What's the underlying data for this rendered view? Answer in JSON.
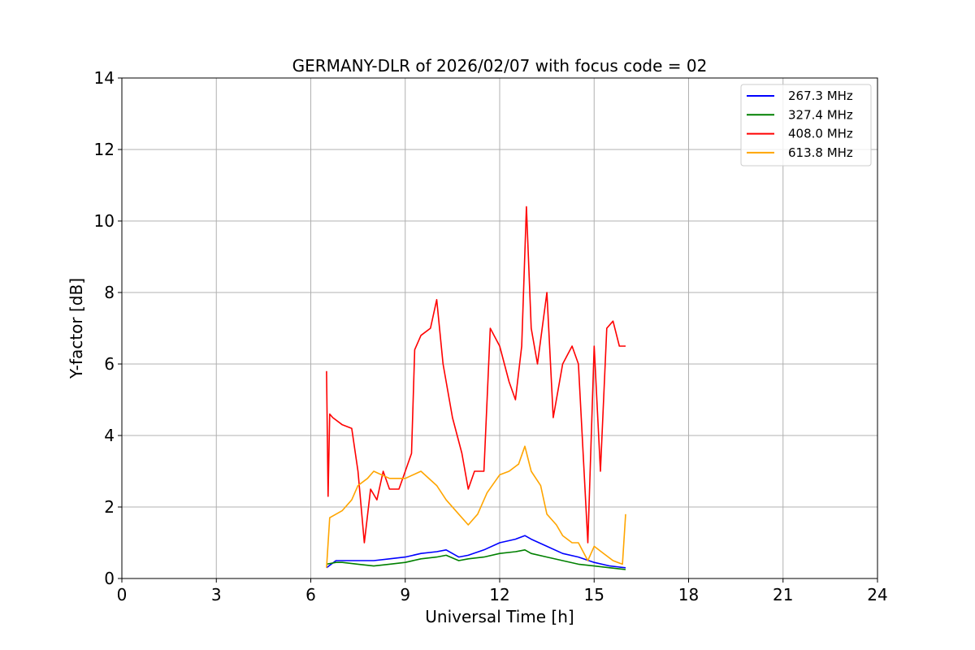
{
  "chart_data": {
    "type": "line",
    "title": "GERMANY-DLR of 2026/02/07 with focus code = 02",
    "xlabel": "Universal Time [h]",
    "ylabel": "Y-factor [dB]",
    "xlim": [
      0,
      24
    ],
    "ylim": [
      0,
      14
    ],
    "xticks": [
      "0",
      "3",
      "6",
      "9",
      "12",
      "15",
      "18",
      "21",
      "24"
    ],
    "yticks": [
      "0",
      "2",
      "4",
      "6",
      "8",
      "10",
      "12",
      "14"
    ],
    "grid": true,
    "legend_position": "top-right",
    "series": [
      {
        "name": "267.3 MHz",
        "color": "#0000ff",
        "x": [
          6.5,
          6.8,
          7.0,
          7.5,
          8.0,
          8.5,
          9.0,
          9.5,
          10.0,
          10.3,
          10.7,
          11.0,
          11.5,
          12.0,
          12.5,
          12.8,
          13.0,
          13.5,
          14.0,
          14.5,
          15.0,
          15.5,
          16.0
        ],
        "y": [
          0.3,
          0.5,
          0.5,
          0.5,
          0.5,
          0.55,
          0.6,
          0.7,
          0.75,
          0.8,
          0.6,
          0.65,
          0.8,
          1.0,
          1.1,
          1.2,
          1.1,
          0.9,
          0.7,
          0.6,
          0.45,
          0.35,
          0.3
        ]
      },
      {
        "name": "327.4 MHz",
        "color": "#008000",
        "x": [
          6.5,
          6.8,
          7.0,
          7.5,
          8.0,
          8.5,
          9.0,
          9.5,
          10.0,
          10.3,
          10.7,
          11.0,
          11.5,
          12.0,
          12.5,
          12.8,
          13.0,
          13.5,
          14.0,
          14.5,
          15.0,
          15.5,
          16.0
        ],
        "y": [
          0.4,
          0.45,
          0.45,
          0.4,
          0.35,
          0.4,
          0.45,
          0.55,
          0.6,
          0.65,
          0.5,
          0.55,
          0.6,
          0.7,
          0.75,
          0.8,
          0.7,
          0.6,
          0.5,
          0.4,
          0.35,
          0.3,
          0.25
        ]
      },
      {
        "name": "408.0 MHz",
        "color": "#ff0000",
        "x": [
          6.5,
          6.55,
          6.6,
          6.7,
          7.0,
          7.3,
          7.5,
          7.7,
          7.9,
          8.1,
          8.3,
          8.5,
          8.8,
          9.0,
          9.2,
          9.3,
          9.5,
          9.8,
          10.0,
          10.2,
          10.5,
          10.8,
          11.0,
          11.2,
          11.5,
          11.7,
          12.0,
          12.3,
          12.5,
          12.7,
          12.85,
          13.0,
          13.2,
          13.5,
          13.7,
          14.0,
          14.3,
          14.5,
          14.8,
          15.0,
          15.2,
          15.4,
          15.6,
          15.8,
          16.0
        ],
        "y": [
          5.8,
          2.3,
          4.6,
          4.5,
          4.3,
          4.2,
          3.0,
          1.0,
          2.5,
          2.2,
          3.0,
          2.5,
          2.5,
          3.0,
          3.5,
          6.4,
          6.8,
          7.0,
          7.8,
          6.0,
          4.5,
          3.5,
          2.5,
          3.0,
          3.0,
          7.0,
          6.5,
          5.5,
          5.0,
          6.5,
          10.4,
          7.0,
          6.0,
          8.0,
          4.5,
          6.0,
          6.5,
          6.0,
          1.0,
          6.5,
          3.0,
          7.0,
          7.2,
          6.5,
          6.5
        ]
      },
      {
        "name": "613.8 MHz",
        "color": "#ffa500",
        "x": [
          6.5,
          6.6,
          7.0,
          7.3,
          7.5,
          7.8,
          8.0,
          8.5,
          9.0,
          9.5,
          10.0,
          10.3,
          10.7,
          11.0,
          11.3,
          11.6,
          12.0,
          12.3,
          12.6,
          12.8,
          13.0,
          13.3,
          13.5,
          13.8,
          14.0,
          14.3,
          14.5,
          14.8,
          15.0,
          15.3,
          15.6,
          15.9,
          16.0
        ],
        "y": [
          0.3,
          1.7,
          1.9,
          2.2,
          2.6,
          2.8,
          3.0,
          2.8,
          2.8,
          3.0,
          2.6,
          2.2,
          1.8,
          1.5,
          1.8,
          2.4,
          2.9,
          3.0,
          3.2,
          3.7,
          3.0,
          2.6,
          1.8,
          1.5,
          1.2,
          1.0,
          1.0,
          0.5,
          0.9,
          0.7,
          0.5,
          0.4,
          1.8
        ]
      }
    ]
  }
}
